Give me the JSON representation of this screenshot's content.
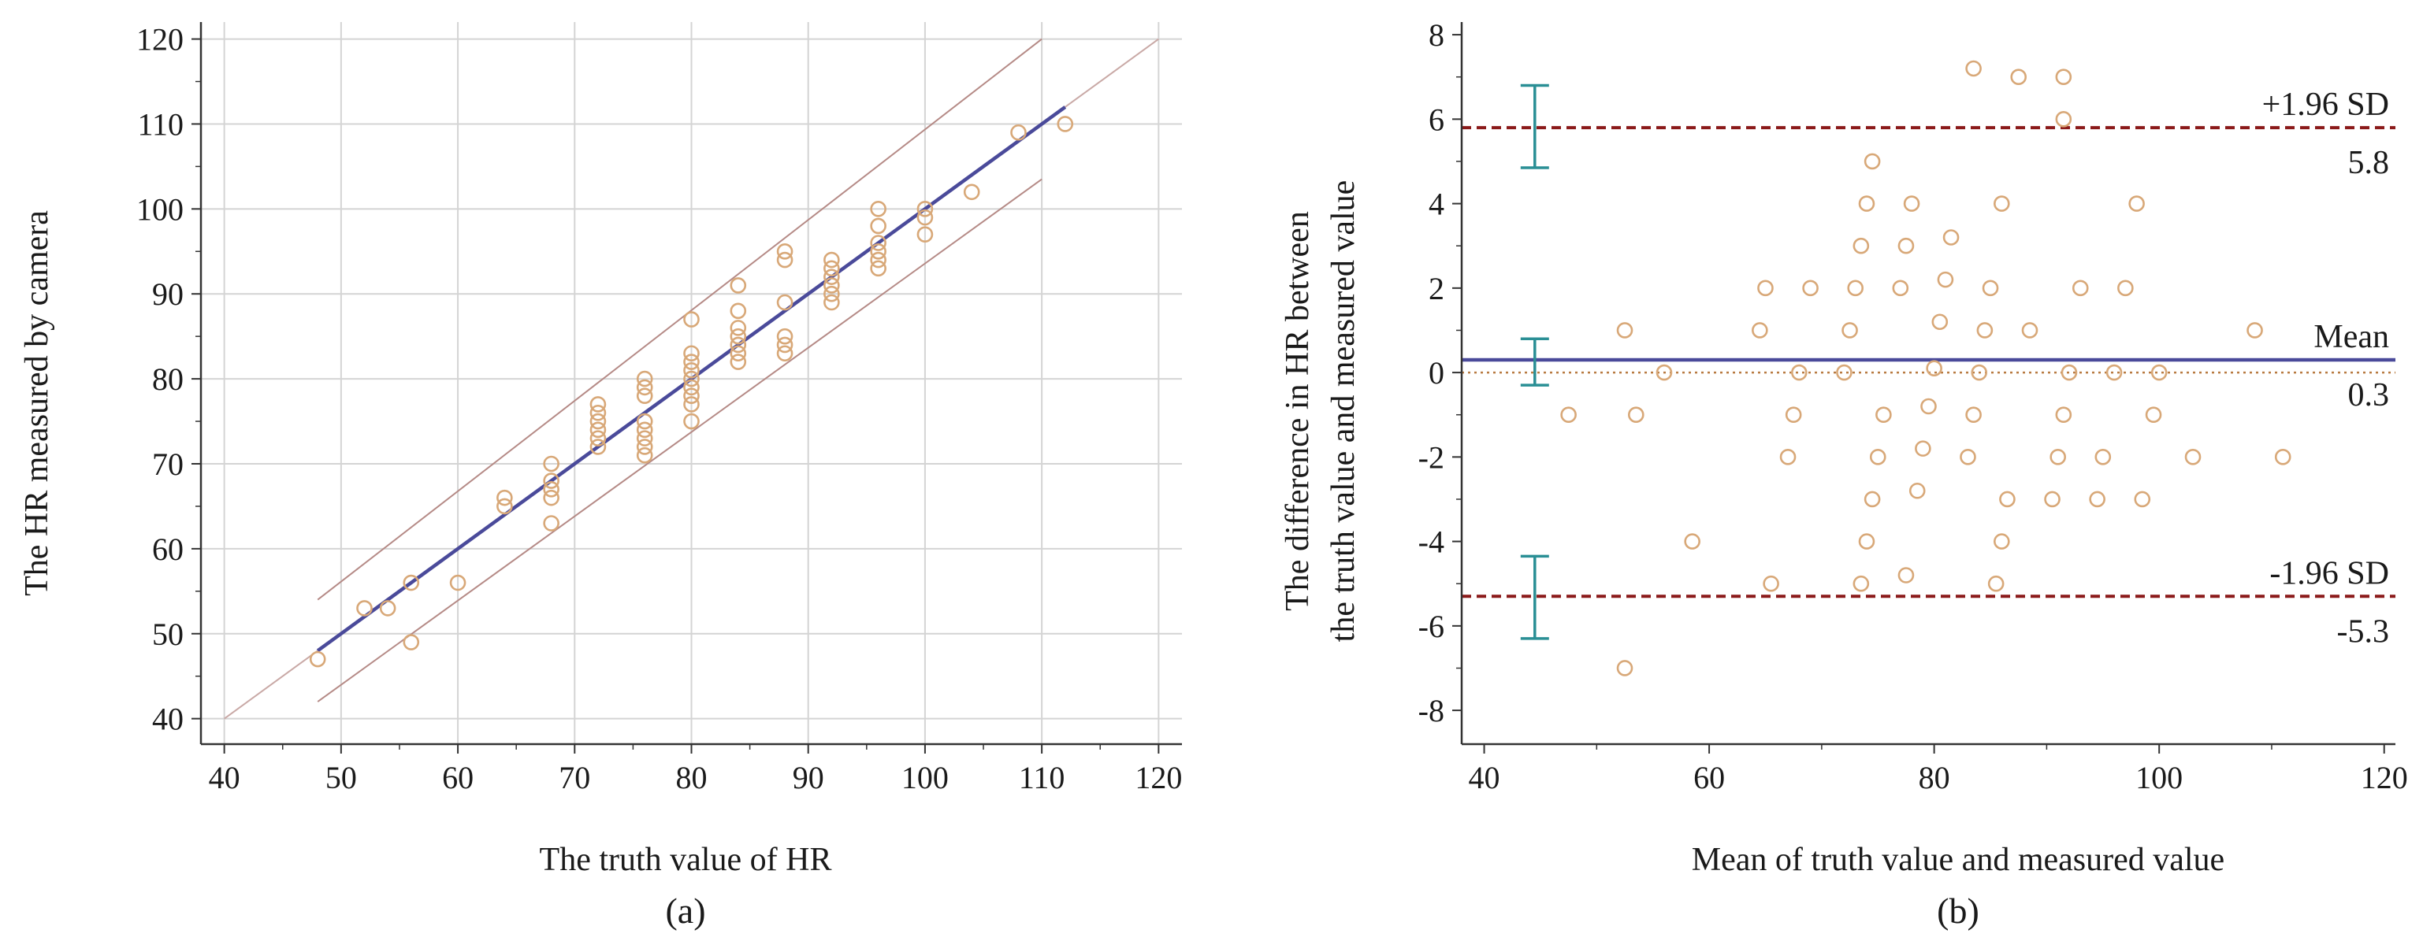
{
  "colors": {
    "grid": "#d4d4d4",
    "axis": "#333333",
    "point": "#d8a878",
    "regression": "#4a4a9a",
    "band": "#b58a86",
    "identity": "#c9a9a6",
    "sd_line": "#8b1a1a",
    "mean_dotted": "#b87a40",
    "errorbar": "#2a8f95"
  },
  "chart_data": [
    {
      "type": "scatter",
      "panel_label": "(a)",
      "xlabel": "The truth value of HR",
      "ylabel": "The HR measured by camera",
      "xlim": [
        38,
        122
      ],
      "ylim": [
        37,
        122
      ],
      "grid": true,
      "xticks": [
        40,
        50,
        60,
        70,
        80,
        90,
        100,
        110,
        120
      ],
      "yticks": [
        40,
        50,
        60,
        70,
        80,
        90,
        100,
        110,
        120
      ],
      "regression_line": {
        "x": [
          48,
          112
        ],
        "y": [
          48,
          112
        ]
      },
      "identity_line": {
        "x": [
          40,
          120
        ],
        "y": [
          40,
          120
        ]
      },
      "upper_band": {
        "x": [
          48,
          110
        ],
        "y": [
          54,
          120
        ]
      },
      "lower_band": {
        "x": [
          48,
          110
        ],
        "y": [
          42,
          103.5
        ]
      },
      "points": [
        [
          48,
          47
        ],
        [
          52,
          53
        ],
        [
          54,
          53
        ],
        [
          56,
          56
        ],
        [
          56,
          49
        ],
        [
          60,
          56
        ],
        [
          64,
          66
        ],
        [
          64,
          65
        ],
        [
          68,
          70
        ],
        [
          68,
          68
        ],
        [
          68,
          67
        ],
        [
          68,
          66
        ],
        [
          68,
          63
        ],
        [
          72,
          77
        ],
        [
          72,
          76
        ],
        [
          72,
          75
        ],
        [
          72,
          74
        ],
        [
          72,
          73
        ],
        [
          72,
          72
        ],
        [
          76,
          80
        ],
        [
          76,
          79
        ],
        [
          76,
          78
        ],
        [
          76,
          75
        ],
        [
          76,
          74
        ],
        [
          76,
          73
        ],
        [
          76,
          72
        ],
        [
          76,
          71
        ],
        [
          80,
          87
        ],
        [
          80,
          83
        ],
        [
          80,
          82
        ],
        [
          80,
          81
        ],
        [
          80,
          80
        ],
        [
          80,
          79
        ],
        [
          80,
          78
        ],
        [
          80,
          77
        ],
        [
          80,
          75
        ],
        [
          84,
          91
        ],
        [
          84,
          88
        ],
        [
          84,
          86
        ],
        [
          84,
          85
        ],
        [
          84,
          84
        ],
        [
          84,
          83
        ],
        [
          84,
          82
        ],
        [
          88,
          95
        ],
        [
          88,
          94
        ],
        [
          88,
          89
        ],
        [
          88,
          85
        ],
        [
          88,
          84
        ],
        [
          88,
          83
        ],
        [
          92,
          94
        ],
        [
          92,
          93
        ],
        [
          92,
          92
        ],
        [
          92,
          91
        ],
        [
          92,
          90
        ],
        [
          92,
          89
        ],
        [
          96,
          100
        ],
        [
          96,
          98
        ],
        [
          96,
          96
        ],
        [
          96,
          95
        ],
        [
          96,
          94
        ],
        [
          96,
          93
        ],
        [
          100,
          100
        ],
        [
          100,
          99
        ],
        [
          100,
          97
        ],
        [
          104,
          102
        ],
        [
          108,
          109
        ],
        [
          112,
          110
        ]
      ]
    },
    {
      "type": "scatter",
      "panel_label": "(b)",
      "xlabel": "Mean of truth value and measured value",
      "ylabel_lines": [
        "The difference in HR between",
        "the truth value and measured value"
      ],
      "xlim": [
        38,
        121
      ],
      "ylim": [
        -8.8,
        8.3
      ],
      "grid": false,
      "xticks": [
        40,
        60,
        80,
        100,
        120
      ],
      "yticks": [
        -8,
        -6,
        -4,
        -2,
        0,
        2,
        4,
        6,
        8
      ],
      "upper_loa": {
        "value": 5.8,
        "label": "+1.96 SD",
        "value_label": "5.8",
        "ci": [
          4.85,
          6.8
        ]
      },
      "mean_line": {
        "value": 0.3,
        "label": "Mean",
        "value_label": "0.3",
        "ci": [
          -0.3,
          0.8
        ]
      },
      "lower_loa": {
        "value": -5.3,
        "label": "-1.96 SD",
        "value_label": "-5.3",
        "ci": [
          -6.3,
          -4.35
        ]
      },
      "errorbar_x": 44.5,
      "zero_line": 0,
      "points": [
        [
          47.5,
          -1
        ],
        [
          52.5,
          1
        ],
        [
          52.5,
          -7
        ],
        [
          53.5,
          -1
        ],
        [
          56,
          0
        ],
        [
          58.5,
          -4
        ],
        [
          64.5,
          1
        ],
        [
          65,
          2
        ],
        [
          65.5,
          -5
        ],
        [
          67,
          -2
        ],
        [
          67.5,
          -1
        ],
        [
          68,
          0
        ],
        [
          69,
          2
        ],
        [
          72,
          0
        ],
        [
          72.5,
          1
        ],
        [
          73,
          2
        ],
        [
          73.5,
          3
        ],
        [
          73.5,
          -5
        ],
        [
          74,
          4
        ],
        [
          74,
          -4
        ],
        [
          74.5,
          -3
        ],
        [
          74.5,
          5
        ],
        [
          75,
          -2
        ],
        [
          75.5,
          -1
        ],
        [
          77,
          2
        ],
        [
          77.5,
          3
        ],
        [
          77.5,
          -4.8
        ],
        [
          78,
          4
        ],
        [
          78.5,
          -2.8
        ],
        [
          79,
          -1.8
        ],
        [
          79.5,
          -0.8
        ],
        [
          80,
          0.1
        ],
        [
          80.5,
          1.2
        ],
        [
          81,
          2.2
        ],
        [
          81.5,
          3.2
        ],
        [
          83,
          -2
        ],
        [
          83.5,
          7.2
        ],
        [
          83.5,
          -1
        ],
        [
          84,
          0
        ],
        [
          84.5,
          1
        ],
        [
          85,
          2
        ],
        [
          85.5,
          -5
        ],
        [
          86,
          4
        ],
        [
          86,
          -4
        ],
        [
          86.5,
          -3
        ],
        [
          87.5,
          7
        ],
        [
          88.5,
          1
        ],
        [
          90.5,
          -3
        ],
        [
          91,
          -2
        ],
        [
          91.5,
          7
        ],
        [
          91.5,
          6
        ],
        [
          91.5,
          -1
        ],
        [
          92,
          0
        ],
        [
          93,
          2
        ],
        [
          94.5,
          -3
        ],
        [
          95,
          -2
        ],
        [
          96,
          0
        ],
        [
          97,
          2
        ],
        [
          98,
          4
        ],
        [
          98.5,
          -3
        ],
        [
          99.5,
          -1
        ],
        [
          100,
          0
        ],
        [
          103,
          -2
        ],
        [
          108.5,
          1
        ],
        [
          111,
          -2
        ]
      ]
    }
  ]
}
